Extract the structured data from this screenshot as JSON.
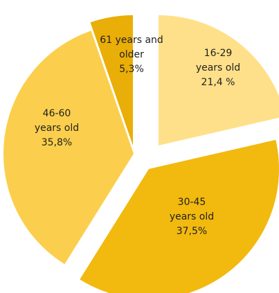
{
  "chart_data": {
    "type": "pie",
    "title": "",
    "legend": "none",
    "exploded": true,
    "start_angle_deg": 0,
    "direction": "clockwise",
    "slices": [
      {
        "category_lines": [
          "16-29",
          "years old"
        ],
        "value_label": "21,4 %",
        "value": 21.4,
        "color": "#FFE08A"
      },
      {
        "category_lines": [
          "30-45",
          "years old"
        ],
        "value_label": "37,5%",
        "value": 37.5,
        "color": "#F2B90F"
      },
      {
        "category_lines": [
          "46-60",
          "years old"
        ],
        "value_label": "35,8%",
        "value": 35.8,
        "color": "#FBCF4D"
      },
      {
        "category_lines": [
          "61 years and",
          "older"
        ],
        "value_label": "5,3%",
        "value": 5.3,
        "color": "#E9AE07"
      }
    ]
  }
}
